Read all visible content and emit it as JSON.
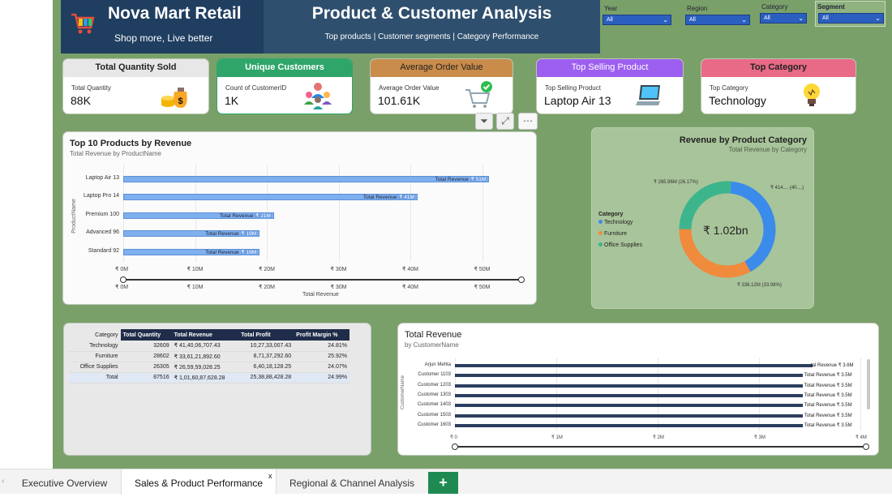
{
  "header": {
    "brand_name": "Nova Mart Retail",
    "brand_tagline": "Shop more, Live better",
    "title": "Product & Customer Analysis",
    "subtitle": "Top products | Customer segments | Category Performance"
  },
  "slicers": {
    "year": {
      "label": "Year",
      "value": "All"
    },
    "region": {
      "label": "Region",
      "value": "All"
    },
    "category": {
      "label": "Category",
      "value": "All"
    },
    "segment": {
      "label": "Segment",
      "value": "All"
    }
  },
  "kpis": {
    "quantity": {
      "title": "Total Quantity Sold",
      "sub": "Total Quantity",
      "value": "88K",
      "icon": "money-bag-icon",
      "color": "#e7e7e7"
    },
    "customers": {
      "title": "Unique Customers",
      "sub": "Count of CustomerID",
      "value": "1K",
      "icon": "people-icon",
      "color": "#2fa56a"
    },
    "aov": {
      "title": "Average Order Value",
      "sub": "Average Order Value",
      "value": "101.61K",
      "icon": "cart-check-icon",
      "color": "#c98c4a"
    },
    "top_product": {
      "title": "Top Selling Product",
      "sub": "Top Selling Product",
      "value": "Laptop Air 13",
      "icon": "laptop-icon",
      "color": "#9d5ff0"
    },
    "top_category": {
      "title": "Top Category",
      "sub": "Top Category",
      "value": "Technology",
      "icon": "lightbulb-icon",
      "color": "#e86a86"
    }
  },
  "top_products": {
    "title": "Top 10 Products by Revenue",
    "subtitle": "Total Revenue by ProductName",
    "ylabel": "ProductName",
    "xlabel": "Total Revenue",
    "bar_label_prefix": "Total Revenue",
    "ticks": [
      "₹ 0M",
      "₹ 10M",
      "₹ 20M",
      "₹ 30M",
      "₹ 40M",
      "₹ 50M"
    ],
    "slider_ticks": [
      "₹ 0M",
      "₹ 10M",
      "₹ 20M",
      "₹ 30M",
      "₹ 40M",
      "₹ 50M"
    ]
  },
  "chart_data": [
    {
      "type": "bar",
      "title": "Top 10 Products by Revenue",
      "categories": [
        "Laptop Air 13",
        "Laptop Pro 14",
        "Premium 100",
        "Advanced 96",
        "Standard 92"
      ],
      "values": [
        51,
        41,
        21,
        19,
        19
      ],
      "value_labels": [
        "₹ 51M",
        "₹ 41M",
        "₹ 21M",
        "₹ 19M",
        "₹ 19M"
      ],
      "xlabel": "Total Revenue",
      "ylabel": "ProductName",
      "xlim": [
        0,
        55
      ]
    },
    {
      "type": "pie",
      "title": "Revenue by Product Category",
      "subtitle": "Total Revenue by Category",
      "center_label": "₹ 1.02bn",
      "legend_title": "Category",
      "categories": [
        "Technology",
        "Furniture",
        "Office Supplies"
      ],
      "values": [
        41.4,
        33.6,
        26.6
      ],
      "colors": [
        "#3b8beb",
        "#f08a3c",
        "#3cb58c"
      ],
      "slice_labels": [
        "₹ 414.... (40....)",
        "₹ 336.12M (33.08%)",
        "₹ 265.96M (26.17%)"
      ]
    },
    {
      "type": "bar",
      "title": "Total Revenue",
      "subtitle": "by CustomerName",
      "categories": [
        "Arjun Mehta",
        "Customer 1103",
        "Customer 1203",
        "Customer 1303",
        "Customer 1403",
        "Customer 1503",
        "Customer 1603"
      ],
      "values": [
        3.6,
        3.5,
        3.5,
        3.5,
        3.5,
        3.5,
        3.5
      ],
      "value_labels": [
        "₹ 3.6M",
        "₹ 3.5M",
        "₹ 3.5M",
        "₹ 3.5M",
        "₹ 3.5M",
        "₹ 3.5M",
        "₹ 3.5M"
      ],
      "ylabel": "CustomerName",
      "xlim": [
        0,
        4
      ]
    }
  ],
  "customers_chart": {
    "title": "Total Revenue",
    "subtitle": "by CustomerName",
    "ylabel": "CustomerName",
    "bar_label_prefix": "Total Revenue",
    "bar_label_prefix_cut": "tal Revenue",
    "ticks": [
      "₹ 0",
      "₹ 1M",
      "₹ 2M",
      "₹ 3M",
      "₹ 4M"
    ]
  },
  "category_table": {
    "columns": [
      "Category",
      "Total Quantity",
      "Total Revenue",
      "Total Profit",
      "Profit Margin %"
    ],
    "rows": [
      [
        "Technology",
        "32609",
        "₹ 41,40,06,707.43",
        "10,27,33,007.43",
        "24.81%"
      ],
      [
        "Furniture",
        "28602",
        "₹ 33,61,21,892.60",
        "8,71,37,292.60",
        "25.92%"
      ],
      [
        "Office Supplies",
        "26305",
        "₹ 26,59,59,028.25",
        "6,40,18,128.25",
        "24.07%"
      ]
    ],
    "total": [
      "Total",
      "87516",
      "₹ 1,01,60,87,628.28",
      "25,38,88,428.28",
      "24.99%"
    ]
  },
  "tabs": [
    {
      "label": "Executive Overview"
    },
    {
      "label": "Sales & Product Performance"
    },
    {
      "label": "Regional & Channel Analysis"
    }
  ],
  "tab_close": "x",
  "add_tab": "+",
  "colors": {
    "canvas": "#7aa06a",
    "header_dark": "#1f3e60",
    "bar": "#7eb0f0",
    "customer_bar": "#2c3e5f",
    "table_header": "#1f2d4a"
  }
}
